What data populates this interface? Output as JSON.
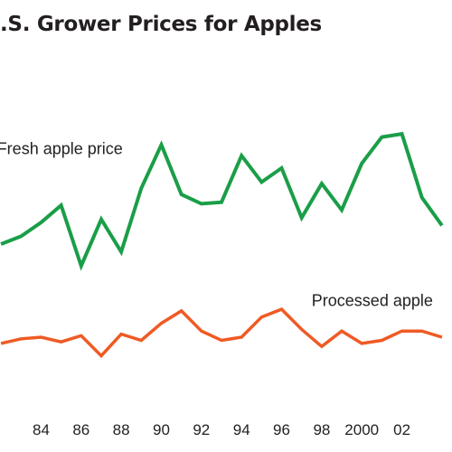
{
  "chart_data": {
    "type": "line",
    "title": ".S. Grower Prices for Apples",
    "xlabel": "",
    "ylabel": "",
    "x": [
      1982,
      1983,
      1984,
      1985,
      1986,
      1987,
      1988,
      1989,
      1990,
      1991,
      1992,
      1993,
      1994,
      1995,
      1996,
      1997,
      1998,
      1999,
      2000,
      2001,
      2002,
      2003,
      2004
    ],
    "x_tick_values": [
      1984,
      1986,
      1988,
      1990,
      1992,
      1994,
      1996,
      1998,
      2000,
      2002
    ],
    "x_tick_labels": [
      "84",
      "86",
      "88",
      "90",
      "92",
      "94",
      "96",
      "98",
      "2000",
      "02"
    ],
    "xlim": [
      1981.95,
      2004.5
    ],
    "ylim": [
      0,
      240
    ],
    "grid": false,
    "legend": "inline labels",
    "series": [
      {
        "name": "Fresh apple price",
        "color": "#1a9e48",
        "values": [
          106,
          111,
          120,
          131,
          92,
          122,
          101,
          142,
          170,
          138,
          132,
          133,
          163,
          146,
          155,
          123,
          145,
          128,
          158,
          175,
          177,
          136,
          118
        ]
      },
      {
        "name": "Processed apple",
        "color": "#ef5a24",
        "values": [
          42,
          45,
          46,
          43,
          47,
          34,
          48,
          44,
          55,
          63,
          50,
          44,
          46,
          59,
          64,
          51,
          40,
          50,
          42,
          44,
          50,
          50,
          46
        ]
      }
    ]
  }
}
